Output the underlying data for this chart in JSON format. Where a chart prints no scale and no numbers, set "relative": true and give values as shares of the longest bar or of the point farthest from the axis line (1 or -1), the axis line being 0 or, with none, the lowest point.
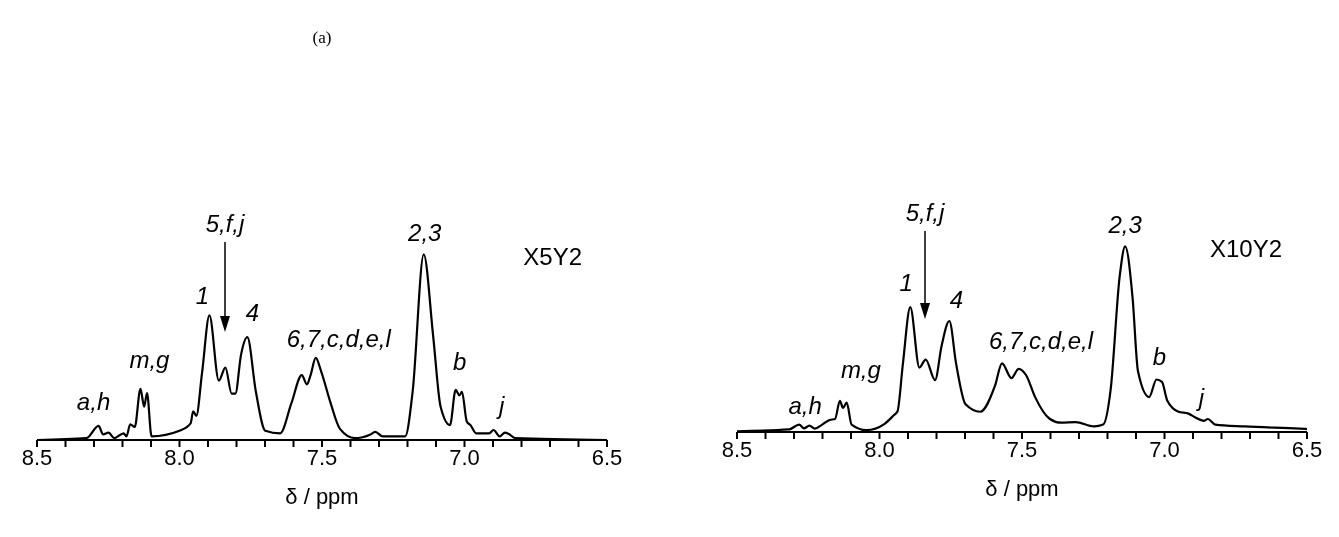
{
  "chart_data": [
    {
      "type": "line",
      "title": "(a)",
      "xlabel": "δ / ppm",
      "relative": true,
      "color": "#000000",
      "line_style": "solid",
      "xlim": [
        8.5,
        6.5
      ],
      "xticks": [
        8.5,
        {
          "value": 8.4,
          "label": null
        },
        {
          "value": 8.3,
          "label": null
        },
        {
          "value": 8.2,
          "label": null
        },
        {
          "value": 8.1,
          "label": null
        },
        {
          "value": 8.0,
          "label": "8.0"
        },
        {
          "value": 7.9,
          "label": null
        },
        {
          "value": 7.8,
          "label": null
        },
        {
          "value": 7.7,
          "label": null
        },
        {
          "value": 7.6,
          "label": null
        },
        7.5,
        {
          "value": 7.4,
          "label": null
        },
        {
          "value": 7.3,
          "label": null
        },
        {
          "value": 7.2,
          "label": null
        },
        {
          "value": 7.1,
          "label": null
        },
        {
          "value": 7.0,
          "label": "7.0"
        },
        {
          "value": 6.9,
          "label": null
        },
        {
          "value": 6.8,
          "label": null
        },
        {
          "value": 6.7,
          "label": null
        },
        {
          "value": 6.6,
          "label": null
        },
        6.5
      ],
      "x": [
        8.5,
        8.327,
        8.284,
        8.268,
        8.249,
        8.229,
        8.196,
        8.186,
        8.173,
        8.157,
        8.137,
        8.124,
        8.114,
        8.098,
        8.0,
        7.961,
        7.952,
        7.941,
        7.921,
        7.895,
        7.862,
        7.839,
        7.817,
        7.804,
        7.784,
        7.762,
        7.732,
        7.699,
        7.647,
        7.607,
        7.571,
        7.553,
        7.54,
        7.522,
        7.503,
        7.47,
        7.437,
        7.385,
        7.33,
        7.313,
        7.287,
        7.208,
        7.182,
        7.143,
        7.11,
        7.084,
        7.051,
        7.031,
        7.018,
        7.009,
        6.992,
        6.979,
        6.959,
        6.914,
        6.898,
        6.877,
        6.858,
        6.846,
        6.822,
        6.5
      ],
      "values": [
        0,
        0.01,
        0.076,
        0.03,
        0.04,
        0.01,
        0.036,
        0.02,
        0.084,
        0.07,
        0.275,
        0.18,
        0.253,
        0.02,
        0.05,
        0.09,
        0.155,
        0.13,
        0.36,
        0.671,
        0.32,
        0.39,
        0.25,
        0.25,
        0.46,
        0.554,
        0.26,
        0.05,
        0.036,
        0.2,
        0.35,
        0.3,
        0.35,
        0.442,
        0.37,
        0.2,
        0.06,
        0.01,
        0.03,
        0.044,
        0.02,
        0.02,
        0.26,
        1.0,
        0.56,
        0.18,
        0.08,
        0.27,
        0.24,
        0.26,
        0.1,
        0.08,
        0.036,
        0.036,
        0.054,
        0.02,
        0.04,
        0.034,
        0.01,
        0
      ],
      "annotations": [
        "X5Y2",
        {
          "text": "a,h",
          "x": 8.284,
          "y": 0.076
        },
        {
          "text": "m,g",
          "x": 8.137,
          "y": 0.275
        },
        {
          "text": "1",
          "x": 7.895,
          "y": 0.671
        },
        "5,f,j",
        {
          "text": "4",
          "x": 7.762,
          "y": 0.554
        },
        {
          "text": "6,7,c,d,e,l",
          "x": 7.522,
          "y": 0.442
        },
        {
          "text": "2,3",
          "x": 7.143,
          "y": 1.0
        },
        {
          "text": "b",
          "x": 7.031,
          "y": 0.27
        },
        {
          "text": "j",
          "x": 6.898,
          "y": 0.054
        }
      ]
    },
    {
      "type": "line",
      "xlabel": "δ / ppm",
      "relative": true,
      "color": "#000000",
      "line_style": "solid",
      "xlim": [
        8.5,
        6.5
      ],
      "xticks": [
        8.5,
        {
          "value": 8.4,
          "label": null
        },
        {
          "value": 8.3,
          "label": null
        },
        {
          "value": 8.2,
          "label": null
        },
        {
          "value": 8.1,
          "label": null
        },
        {
          "value": 8.0,
          "label": "8.0"
        },
        {
          "value": 7.9,
          "label": null
        },
        {
          "value": 7.8,
          "label": null
        },
        {
          "value": 7.7,
          "label": null
        },
        {
          "value": 7.6,
          "label": null
        },
        7.5,
        {
          "value": 7.4,
          "label": null
        },
        {
          "value": 7.3,
          "label": null
        },
        {
          "value": 7.2,
          "label": null
        },
        {
          "value": 7.1,
          "label": null
        },
        {
          "value": 7.0,
          "label": "7.0"
        },
        {
          "value": 6.9,
          "label": null
        },
        {
          "value": 6.8,
          "label": null
        },
        {
          "value": 6.7,
          "label": null
        },
        {
          "value": 6.6,
          "label": null
        },
        6.5
      ],
      "x": [
        8.5,
        8.317,
        8.282,
        8.265,
        8.246,
        8.227,
        8.201,
        8.175,
        8.156,
        8.139,
        8.128,
        8.115,
        8.098,
        8.046,
        7.982,
        7.95,
        7.937,
        7.918,
        7.892,
        7.86,
        7.838,
        7.805,
        7.782,
        7.755,
        7.731,
        7.698,
        7.647,
        7.595,
        7.57,
        7.537,
        7.512,
        7.486,
        7.454,
        7.402,
        7.363,
        7.312,
        7.247,
        7.215,
        7.189,
        7.157,
        7.138,
        7.112,
        7.093,
        7.054,
        7.028,
        7.009,
        6.99,
        6.951,
        6.916,
        6.893,
        6.861,
        6.848,
        6.822,
        6.719,
        6.526,
        6.5
      ],
      "values": [
        0.004,
        0.014,
        0.04,
        0.02,
        0.034,
        0.018,
        0.04,
        0.065,
        0.07,
        0.168,
        0.13,
        0.158,
        0.04,
        0.01,
        0.044,
        0.09,
        0.11,
        0.366,
        0.673,
        0.347,
        0.39,
        0.28,
        0.465,
        0.598,
        0.366,
        0.149,
        0.109,
        0.248,
        0.37,
        0.29,
        0.34,
        0.307,
        0.188,
        0.07,
        0.05,
        0.053,
        0.03,
        0.04,
        0.228,
        0.842,
        1.0,
        0.723,
        0.327,
        0.188,
        0.283,
        0.27,
        0.168,
        0.109,
        0.099,
        0.079,
        0.06,
        0.07,
        0.04,
        0.03,
        0.018,
        0.016
      ],
      "annotations": [
        "X10Y2",
        {
          "text": "a,h",
          "x": 8.282,
          "y": 0.04
        },
        {
          "text": "m,g",
          "x": 8.139,
          "y": 0.168
        },
        {
          "text": "1",
          "x": 7.892,
          "y": 0.673
        },
        "5,f,j",
        {
          "text": "4",
          "x": 7.755,
          "y": 0.598
        },
        {
          "text": "6,7,c,d,e,l",
          "x": 7.57,
          "y": 0.37
        },
        {
          "text": "2,3",
          "x": 7.138,
          "y": 1.0
        },
        {
          "text": "b",
          "x": 7.028,
          "y": 0.283
        },
        {
          "text": "j",
          "x": 6.916,
          "y": 0.099
        }
      ]
    }
  ]
}
